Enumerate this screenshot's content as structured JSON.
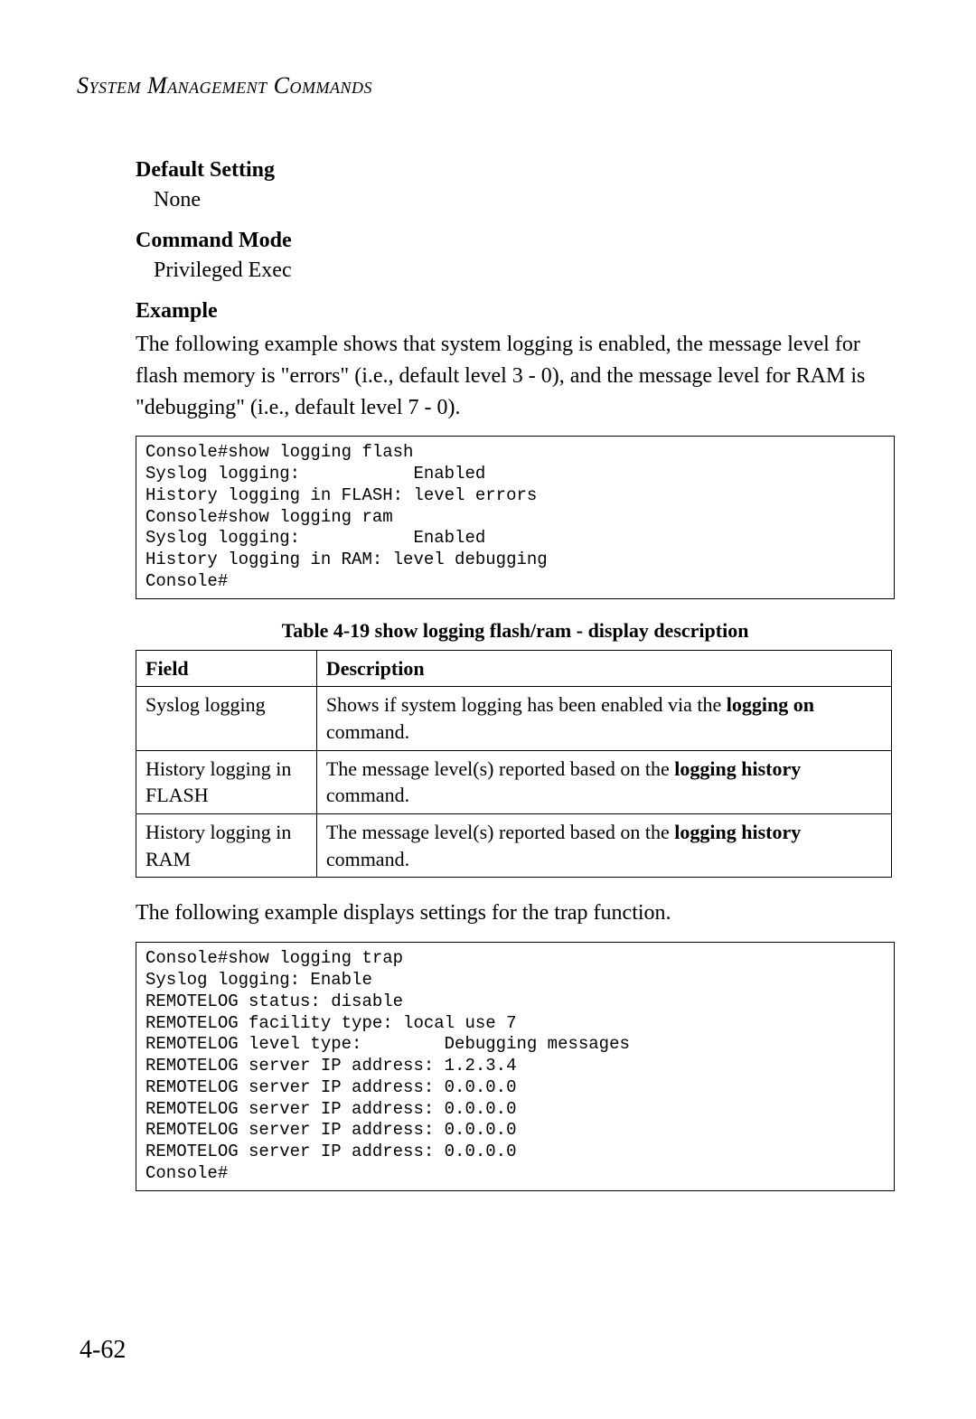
{
  "header": {
    "title": "System Management Commands"
  },
  "sections": {
    "default_setting": {
      "heading": "Default Setting",
      "value": "None"
    },
    "command_mode": {
      "heading": "Command Mode",
      "value": "Privileged Exec"
    },
    "example": {
      "heading": "Example",
      "para": "The following example shows that system logging is enabled, the message level for flash memory is \"errors\" (i.e., default level 3 - 0), and the message level for RAM is \"debugging\" (i.e., default level 7 - 0)."
    }
  },
  "code_block_1": "Console#show logging flash\nSyslog logging:           Enabled\nHistory logging in FLASH: level errors\nConsole#show logging ram\nSyslog logging:           Enabled\nHistory logging in RAM: level debugging\nConsole#",
  "table": {
    "caption": "Table 4-19   show logging flash/ram - display description",
    "columns": [
      "Field",
      "Description"
    ],
    "rows": [
      {
        "field": "Syslog logging",
        "desc_pre": "Shows if system logging has been enabled via the ",
        "desc_bold": "logging on",
        "desc_post": " command."
      },
      {
        "field": "History logging in FLASH",
        "desc_pre": "The message level(s) reported based on the ",
        "desc_bold": "logging history",
        "desc_post": " command."
      },
      {
        "field": "History logging in RAM",
        "desc_pre": "The message level(s) reported based on the ",
        "desc_bold": "logging history",
        "desc_post": " command."
      }
    ]
  },
  "trap_intro": "The following example displays settings for the trap function.",
  "code_block_2": "Console#show logging trap\nSyslog logging: Enable\nREMOTELOG status: disable\nREMOTELOG facility type: local use 7\nREMOTELOG level type:        Debugging messages\nREMOTELOG server IP address: 1.2.3.4\nREMOTELOG server IP address: 0.0.0.0\nREMOTELOG server IP address: 0.0.0.0\nREMOTELOG server IP address: 0.0.0.0\nREMOTELOG server IP address: 0.0.0.0\nConsole#",
  "page_number": "4-62"
}
